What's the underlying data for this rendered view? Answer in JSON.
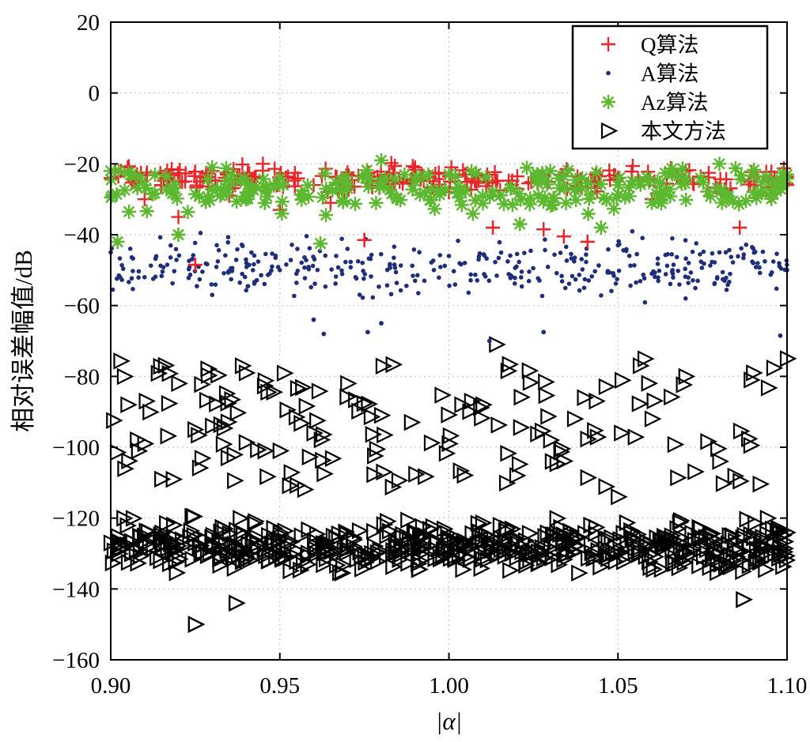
{
  "chart_data": {
    "type": "scatter",
    "xlabel": "|α|",
    "ylabel": "相对误差幅值/dB",
    "xlim": [
      0.9,
      1.1
    ],
    "ylim": [
      -160,
      20
    ],
    "xticks": [
      "0.90",
      "0.95",
      "1.00",
      "1.05",
      "1.10"
    ],
    "yticks": [
      "20",
      "0",
      "−20",
      "−40",
      "−60",
      "−80",
      "−100",
      "−120",
      "−140",
      "−160"
    ],
    "grid": true,
    "legend_position": "top-right",
    "series": [
      {
        "name": "Q算法",
        "marker": "plus",
        "color": "#e8262a",
        "distribution": {
          "x_range": [
            0.9,
            1.1
          ],
          "y_band": [
            -30,
            -19
          ],
          "y_outliers": [
            [
              0.925,
              -48.5
            ],
            [
              0.975,
              -41.5
            ],
            [
              1.013,
              -38
            ],
            [
              1.028,
              -38.5
            ],
            [
              1.034,
              -40.5
            ],
            [
              1.041,
              -42
            ],
            [
              1.086,
              -38
            ]
          ]
        },
        "values": [
          [
            0.9,
            -24
          ],
          [
            0.905,
            -21
          ],
          [
            0.91,
            -30
          ],
          [
            0.915,
            -26
          ],
          [
            0.92,
            -35
          ],
          [
            0.925,
            -48.5
          ],
          [
            0.93,
            -22
          ],
          [
            0.935,
            -29
          ],
          [
            0.945,
            -20
          ],
          [
            0.95,
            -33
          ],
          [
            0.96,
            -26
          ],
          [
            0.965,
            -31
          ],
          [
            0.97,
            -23
          ],
          [
            0.975,
            -41.5
          ],
          [
            0.98,
            -25
          ],
          [
            0.99,
            -21
          ],
          [
            1.0,
            -28
          ],
          [
            1.005,
            -23
          ],
          [
            1.013,
            -38
          ],
          [
            1.02,
            -27
          ],
          [
            1.028,
            -38.5
          ],
          [
            1.034,
            -40.5
          ],
          [
            1.041,
            -42
          ],
          [
            1.05,
            -24
          ],
          [
            1.06,
            -30
          ],
          [
            1.07,
            -22
          ],
          [
            1.08,
            -27
          ],
          [
            1.086,
            -38
          ],
          [
            1.095,
            -29
          ],
          [
            1.1,
            -26
          ]
        ]
      },
      {
        "name": "A算法",
        "marker": "dot",
        "color": "#1f2e7a",
        "distribution": {
          "x_range": [
            0.9,
            1.1
          ],
          "y_band": [
            -60,
            -38
          ],
          "y_outliers": [
            [
              0.96,
              -64
            ],
            [
              0.963,
              -68
            ],
            [
              0.976,
              -67.5
            ],
            [
              0.98,
              -65
            ],
            [
              1.012,
              -70
            ],
            [
              1.028,
              -67.5
            ],
            [
              1.098,
              -68.5
            ]
          ]
        },
        "values": [
          [
            0.9,
            -45
          ],
          [
            0.91,
            -52
          ],
          [
            0.92,
            -40
          ],
          [
            0.93,
            -57
          ],
          [
            0.94,
            -47
          ],
          [
            0.95,
            -50
          ],
          [
            0.96,
            -64
          ],
          [
            0.963,
            -68
          ],
          [
            0.97,
            -44
          ],
          [
            0.976,
            -67.5
          ],
          [
            0.98,
            -65
          ],
          [
            0.99,
            -53
          ],
          [
            1.0,
            -46
          ],
          [
            1.012,
            -70
          ],
          [
            1.02,
            -49
          ],
          [
            1.028,
            -67.5
          ],
          [
            1.04,
            -55
          ],
          [
            1.05,
            -43
          ],
          [
            1.06,
            -51
          ],
          [
            1.07,
            -58
          ],
          [
            1.08,
            -45
          ],
          [
            1.09,
            -48
          ],
          [
            1.098,
            -68.5
          ],
          [
            1.1,
            -50
          ]
        ]
      },
      {
        "name": "Az算法",
        "marker": "asterisk",
        "color": "#5cb82e",
        "distribution": {
          "x_range": [
            0.9,
            1.1
          ],
          "y_band": [
            -36,
            -18
          ],
          "y_outliers": [
            [
              0.902,
              -42
            ],
            [
              0.92,
              -40
            ],
            [
              0.962,
              -42.5
            ],
            [
              1.021,
              -37
            ],
            [
              1.045,
              -38
            ]
          ]
        },
        "values": [
          [
            0.9,
            -22
          ],
          [
            0.902,
            -42
          ],
          [
            0.91,
            -26
          ],
          [
            0.92,
            -40
          ],
          [
            0.93,
            -21
          ],
          [
            0.94,
            -30
          ],
          [
            0.95,
            -24
          ],
          [
            0.962,
            -42.5
          ],
          [
            0.97,
            -27
          ],
          [
            0.98,
            -19
          ],
          [
            0.99,
            -25
          ],
          [
            1.0,
            -23
          ],
          [
            1.01,
            -29
          ],
          [
            1.021,
            -37
          ],
          [
            1.03,
            -22
          ],
          [
            1.045,
            -38
          ],
          [
            1.05,
            -26
          ],
          [
            1.06,
            -31
          ],
          [
            1.07,
            -24
          ],
          [
            1.08,
            -20
          ],
          [
            1.09,
            -28
          ],
          [
            1.1,
            -23
          ]
        ]
      },
      {
        "name": "本文方法",
        "marker": "triangle-right",
        "color": "#000000",
        "distribution": {
          "x_range": [
            0.9,
            1.1
          ],
          "y_dense_band": [
            -138,
            -118
          ],
          "y_sparse_band": [
            -112,
            -75
          ],
          "y_outliers": [
            [
              0.925,
              -150
            ],
            [
              0.937,
              -144
            ],
            [
              1.087,
              -143
            ]
          ]
        },
        "values": [
          [
            0.9,
            -127
          ],
          [
            0.905,
            -88
          ],
          [
            0.91,
            -99
          ],
          [
            0.915,
            -109
          ],
          [
            0.92,
            -82
          ],
          [
            0.925,
            -150
          ],
          [
            0.93,
            -94
          ],
          [
            0.937,
            -144
          ],
          [
            0.94,
            -79
          ],
          [
            0.95,
            -101
          ],
          [
            0.96,
            -96
          ],
          [
            0.97,
            -82
          ],
          [
            0.98,
            -91
          ],
          [
            0.99,
            -124
          ],
          [
            1.0,
            -99
          ],
          [
            1.01,
            -88
          ],
          [
            1.014,
            -71
          ],
          [
            1.02,
            -108
          ],
          [
            1.03,
            -98
          ],
          [
            1.04,
            -86
          ],
          [
            1.05,
            -114
          ],
          [
            1.06,
            -92
          ],
          [
            1.07,
            -80
          ],
          [
            1.08,
            -104
          ],
          [
            1.087,
            -143
          ],
          [
            1.09,
            -79
          ],
          [
            1.1,
            -75
          ]
        ]
      }
    ]
  }
}
